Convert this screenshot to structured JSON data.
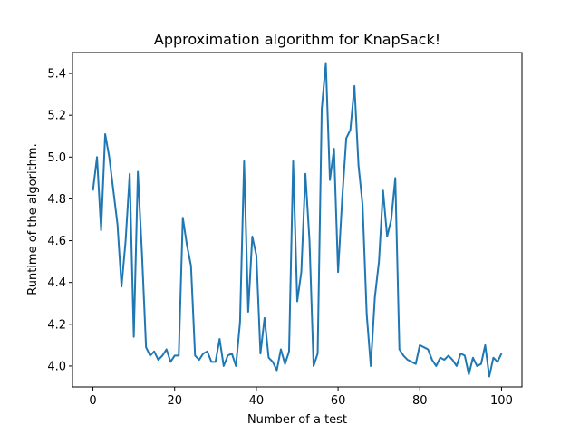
{
  "chart_data": {
    "type": "line",
    "title": "Approximation algorithm for KnapSack!",
    "xlabel": "Number of a test",
    "ylabel": "Runtime of the algorithm.",
    "xlim": [
      -5,
      105
    ],
    "ylim": [
      3.9,
      5.5
    ],
    "xticks": [
      0,
      20,
      40,
      60,
      80,
      100
    ],
    "yticks": [
      4.0,
      4.2,
      4.4,
      4.6,
      4.8,
      5.0,
      5.2,
      5.4
    ],
    "ytick_labels": [
      "4.0",
      "4.2",
      "4.4",
      "4.6",
      "4.8",
      "5.0",
      "5.2",
      "5.4"
    ],
    "grid": false,
    "colors": {
      "line": "#1f77b4"
    },
    "series": [
      {
        "x": [
          0,
          1,
          2,
          3,
          4,
          5,
          6,
          7,
          8,
          9,
          10,
          11,
          12,
          13,
          14,
          15,
          16,
          17,
          18,
          19,
          20,
          21,
          22,
          23,
          24,
          25,
          26,
          27,
          28,
          29,
          30,
          31,
          32,
          33,
          34,
          35,
          36,
          37,
          38,
          39,
          40,
          41,
          42,
          43,
          44,
          45,
          46,
          47,
          48,
          49,
          50,
          51,
          52,
          53,
          54,
          55,
          56,
          57,
          58,
          59,
          60,
          61,
          62,
          63,
          64,
          65,
          66,
          67,
          68,
          69,
          70,
          71,
          72,
          73,
          74,
          75,
          76,
          77,
          78,
          79,
          80,
          81,
          82,
          83,
          84,
          85,
          86,
          87,
          88,
          89,
          90,
          91,
          92,
          93,
          94,
          95,
          96,
          97,
          98,
          99,
          100
        ],
        "values": [
          4.84,
          5.0,
          4.65,
          5.11,
          5.0,
          4.84,
          4.68,
          4.38,
          4.6,
          4.92,
          4.14,
          4.93,
          4.54,
          4.09,
          4.05,
          4.07,
          4.03,
          4.05,
          4.08,
          4.02,
          4.05,
          4.05,
          4.71,
          4.58,
          4.48,
          4.05,
          4.03,
          4.06,
          4.07,
          4.02,
          4.02,
          4.13,
          4.0,
          4.05,
          4.06,
          4.0,
          4.21,
          4.98,
          4.26,
          4.62,
          4.53,
          4.06,
          4.23,
          4.04,
          4.02,
          3.98,
          4.08,
          4.01,
          4.07,
          4.98,
          4.31,
          4.45,
          4.92,
          4.6,
          4.0,
          4.06,
          5.23,
          5.45,
          4.89,
          5.04,
          4.45,
          4.8,
          5.09,
          5.13,
          5.34,
          4.96,
          4.77,
          4.25,
          4.0,
          4.33,
          4.5,
          4.84,
          4.62,
          4.7,
          4.9,
          4.08,
          4.05,
          4.03,
          4.02,
          4.01,
          4.1,
          4.09,
          4.08,
          4.03,
          4.0,
          4.04,
          4.03,
          4.05,
          4.03,
          4.0,
          4.06,
          4.05,
          3.96,
          4.04,
          4.0,
          4.01,
          4.1,
          3.95,
          4.04,
          4.02,
          4.06
        ]
      }
    ]
  }
}
